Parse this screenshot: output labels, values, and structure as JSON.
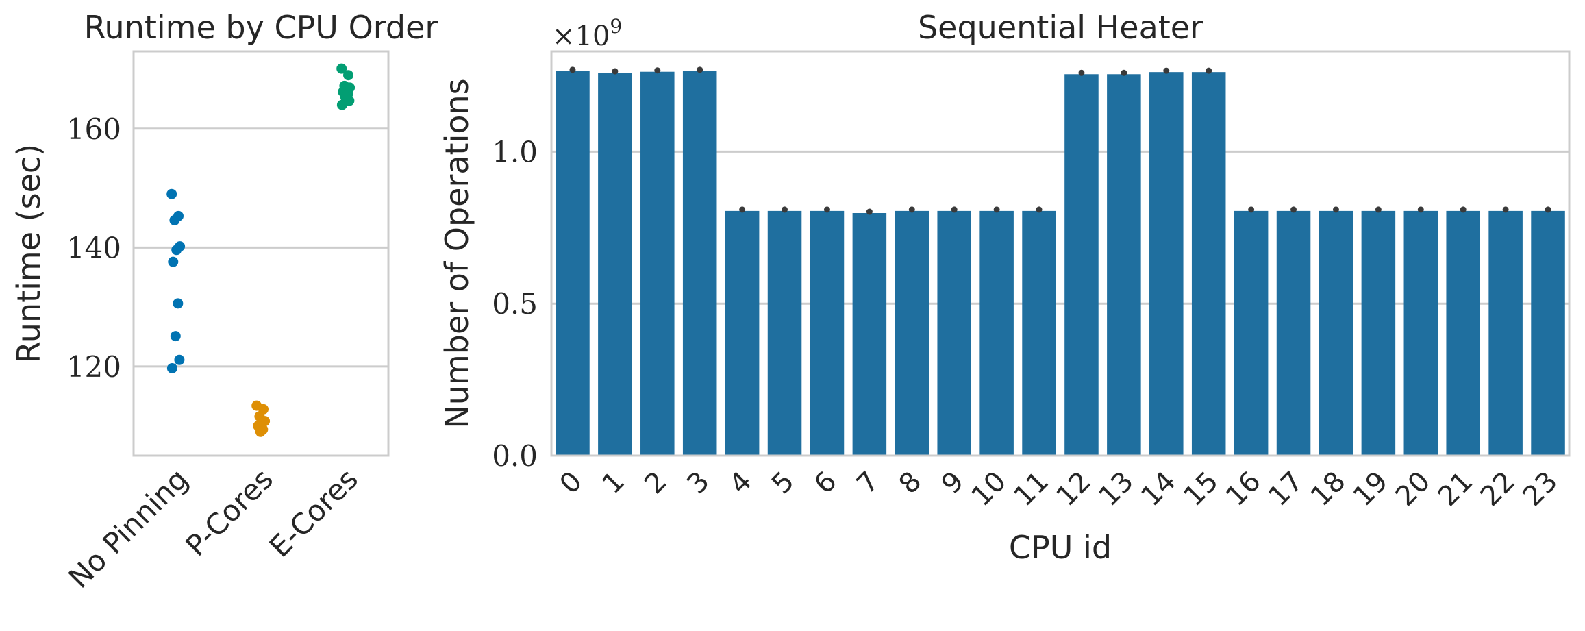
{
  "chart_data": [
    {
      "type": "scatter",
      "title": "Runtime by CPU Order",
      "xlabel": "",
      "ylabel": "Runtime (sec)",
      "ylim": [
        105,
        173
      ],
      "yticks": [
        120,
        140,
        160
      ],
      "grid": "horizontal",
      "categories": [
        "No Pinning",
        "P-Cores",
        "E-Cores"
      ],
      "series": [
        {
          "category": "No Pinning",
          "color": "#0173b2",
          "values": [
            149.0,
            145.3,
            144.6,
            140.2,
            139.6,
            137.6,
            130.6,
            125.1,
            121.1,
            119.7
          ]
        },
        {
          "category": "P-Cores",
          "color": "#de8f05",
          "values": [
            113.4,
            112.8,
            111.6,
            110.8,
            110.3,
            110.0,
            109.4,
            109.0
          ]
        },
        {
          "category": "E-Cores",
          "color": "#029e73",
          "values": [
            170.1,
            169.0,
            167.2,
            166.9,
            166.5,
            166.2,
            165.8,
            165.3,
            164.7,
            164.0
          ]
        }
      ]
    },
    {
      "type": "bar",
      "title": "Sequential Heater",
      "xlabel": "CPU id",
      "ylabel": "Number of Operations",
      "y_multiplier_label": "×10",
      "y_multiplier_exponent": "9",
      "ylim": [
        0,
        1.33
      ],
      "yticks": [
        "0.0",
        "0.5",
        "1.0"
      ],
      "grid": "horizontal",
      "bar_color": "#1f6f9f",
      "errorbar_color": "#3a3a3a",
      "categories": [
        "0",
        "1",
        "2",
        "3",
        "4",
        "5",
        "6",
        "7",
        "8",
        "9",
        "10",
        "11",
        "12",
        "13",
        "14",
        "15",
        "16",
        "17",
        "18",
        "19",
        "20",
        "21",
        "22",
        "23"
      ],
      "values": [
        1.265,
        1.26,
        1.263,
        1.265,
        0.805,
        0.805,
        0.805,
        0.798,
        0.805,
        0.805,
        0.805,
        0.805,
        1.255,
        1.255,
        1.262,
        1.262,
        0.805,
        0.805,
        0.805,
        0.805,
        0.805,
        0.805,
        0.805,
        0.805
      ]
    }
  ]
}
